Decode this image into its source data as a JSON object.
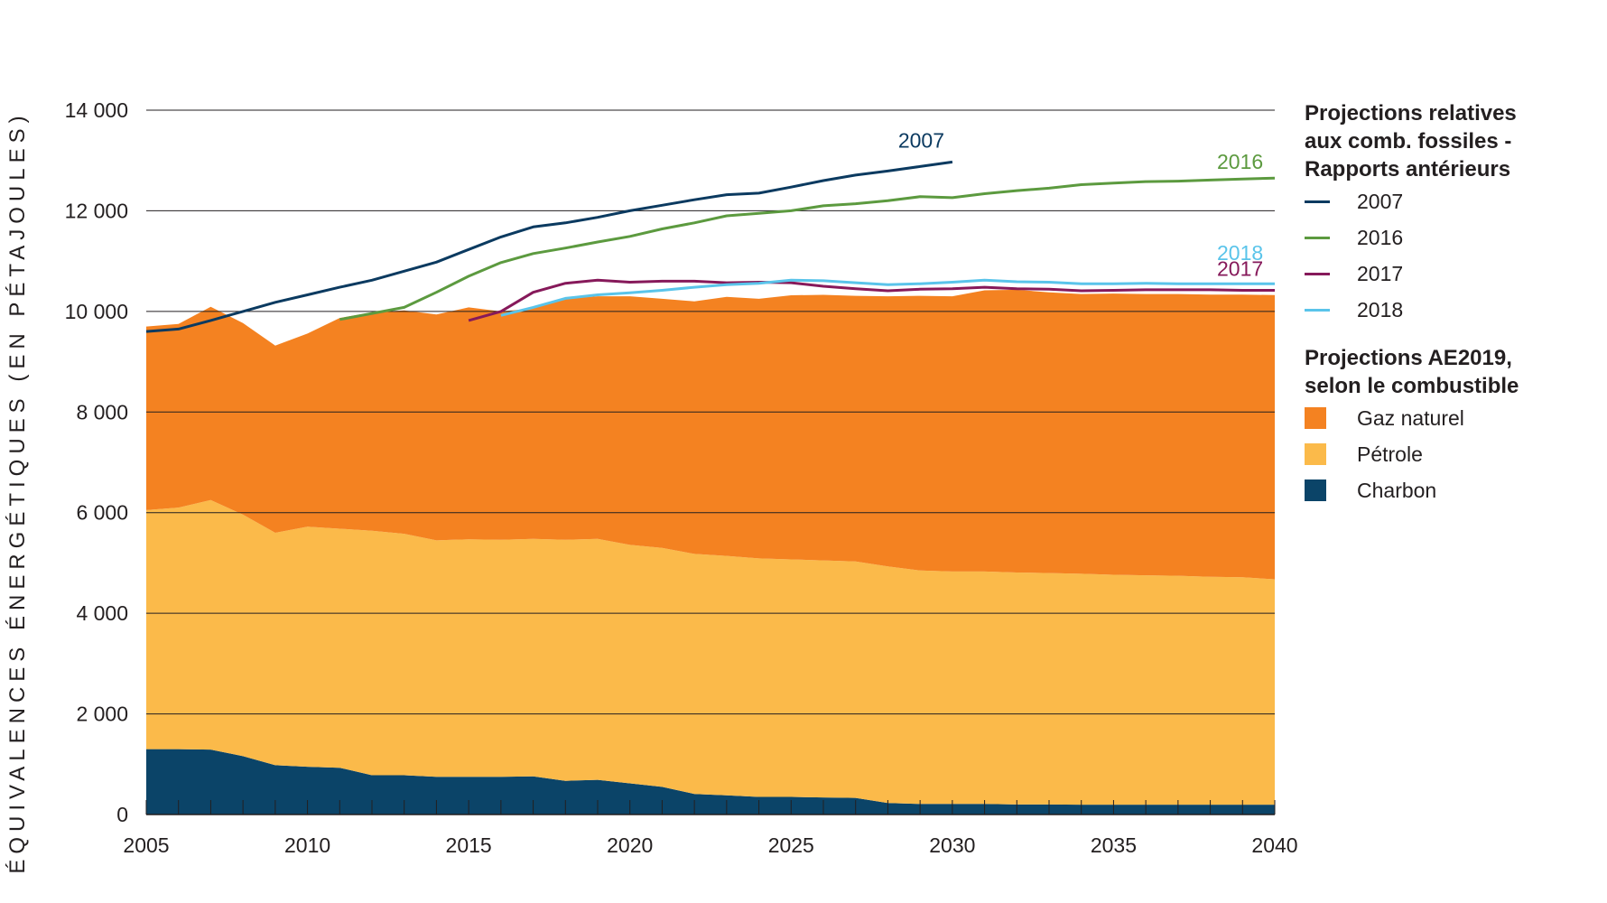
{
  "chart_data": {
    "type": "area",
    "ylabel": "ÉQUIVALENCES ÉNERGÉTIQUES (EN PÉTAJOULES)",
    "xlabel": "",
    "xlim": [
      2005,
      2040
    ],
    "ylim": [
      0,
      14000
    ],
    "x_ticks": [
      2005,
      2010,
      2015,
      2020,
      2025,
      2030,
      2035,
      2040
    ],
    "x_tick_labels": [
      "2005",
      "2010",
      "2015",
      "2020",
      "2025",
      "2030",
      "2035",
      "2040"
    ],
    "y_ticks": [
      0,
      2000,
      4000,
      6000,
      8000,
      10000,
      12000,
      14000
    ],
    "y_tick_labels": [
      "0",
      "2 000",
      "4 000",
      "6 000",
      "8 000",
      "10 000",
      "12 000",
      "14 000"
    ],
    "gridlines": true,
    "x": [
      2005,
      2006,
      2007,
      2008,
      2009,
      2010,
      2011,
      2012,
      2013,
      2014,
      2015,
      2016,
      2017,
      2018,
      2019,
      2020,
      2021,
      2022,
      2023,
      2024,
      2025,
      2026,
      2027,
      2028,
      2029,
      2030,
      2031,
      2032,
      2033,
      2034,
      2035,
      2036,
      2037,
      2038,
      2039,
      2040
    ],
    "stacked_series": [
      {
        "name": "Charbon",
        "color": "#0b4468",
        "values": [
          1300,
          1300,
          1290,
          1160,
          980,
          950,
          930,
          780,
          780,
          750,
          750,
          750,
          760,
          670,
          690,
          620,
          550,
          410,
          380,
          350,
          350,
          340,
          330,
          230,
          210,
          210,
          210,
          200,
          200,
          195,
          195,
          195,
          195,
          195,
          195,
          195
        ]
      },
      {
        "name": "Pétrole",
        "color": "#fbba4a",
        "values": [
          4750,
          4800,
          4960,
          4800,
          4620,
          4770,
          4750,
          4860,
          4800,
          4700,
          4720,
          4710,
          4720,
          4790,
          4790,
          4740,
          4750,
          4770,
          4760,
          4740,
          4720,
          4710,
          4700,
          4700,
          4640,
          4620,
          4620,
          4610,
          4600,
          4590,
          4570,
          4560,
          4550,
          4530,
          4520,
          4480
        ]
      },
      {
        "name": "Gaz naturel",
        "color": "#f48221",
        "values": [
          3650,
          3650,
          3840,
          3810,
          3720,
          3840,
          4190,
          4340,
          4440,
          4490,
          4610,
          4540,
          4580,
          4790,
          4820,
          4940,
          4950,
          5020,
          5150,
          5160,
          5250,
          5280,
          5280,
          5370,
          5460,
          5470,
          5590,
          5620,
          5580,
          5560,
          5590,
          5590,
          5600,
          5610,
          5620,
          5650
        ]
      }
    ],
    "line_series": [
      {
        "name": "2007",
        "color": "#0b3a60",
        "x": [
          2005,
          2006,
          2007,
          2008,
          2009,
          2010,
          2011,
          2012,
          2013,
          2014,
          2015,
          2016,
          2017,
          2018,
          2019,
          2020,
          2021,
          2022,
          2023,
          2024,
          2025,
          2026,
          2027,
          2028,
          2029,
          2030
        ],
        "values": [
          9600,
          9650,
          9820,
          10000,
          10180,
          10330,
          10480,
          10620,
          10800,
          10980,
          11230,
          11480,
          11680,
          11760,
          11870,
          12000,
          12110,
          12220,
          12320,
          12350,
          12470,
          12600,
          12710,
          12790,
          12880,
          12970
        ]
      },
      {
        "name": "2016",
        "color": "#5c9a3f",
        "x": [
          2011,
          2012,
          2013,
          2014,
          2015,
          2016,
          2017,
          2018,
          2019,
          2020,
          2021,
          2022,
          2023,
          2024,
          2025,
          2026,
          2027,
          2028,
          2029,
          2030,
          2031,
          2032,
          2033,
          2034,
          2035,
          2036,
          2037,
          2038,
          2039,
          2040
        ],
        "values": [
          9840,
          9960,
          10080,
          10380,
          10700,
          10970,
          11150,
          11260,
          11380,
          11490,
          11640,
          11760,
          11900,
          11950,
          12000,
          12100,
          12140,
          12200,
          12280,
          12260,
          12340,
          12400,
          12450,
          12520,
          12550,
          12580,
          12590,
          12610,
          12630,
          12650
        ]
      },
      {
        "name": "2017",
        "color": "#86195a",
        "x": [
          2015,
          2016,
          2017,
          2018,
          2019,
          2020,
          2021,
          2022,
          2023,
          2024,
          2025,
          2026,
          2027,
          2028,
          2029,
          2030,
          2031,
          2032,
          2033,
          2034,
          2035,
          2036,
          2037,
          2038,
          2039,
          2040
        ],
        "values": [
          9820,
          10000,
          10380,
          10560,
          10620,
          10580,
          10600,
          10600,
          10570,
          10580,
          10570,
          10500,
          10450,
          10410,
          10440,
          10450,
          10480,
          10450,
          10440,
          10410,
          10420,
          10430,
          10430,
          10430,
          10420,
          10420
        ]
      },
      {
        "name": "2018",
        "color": "#5ac4ea",
        "x": [
          2016,
          2017,
          2018,
          2019,
          2020,
          2021,
          2022,
          2023,
          2024,
          2025,
          2026,
          2027,
          2028,
          2029,
          2030,
          2031,
          2032,
          2033,
          2034,
          2035,
          2036,
          2037,
          2038,
          2039,
          2040
        ],
        "values": [
          9920,
          10080,
          10260,
          10330,
          10370,
          10420,
          10480,
          10530,
          10560,
          10620,
          10610,
          10570,
          10530,
          10550,
          10580,
          10620,
          10590,
          10580,
          10550,
          10550,
          10560,
          10550,
          10550,
          10550,
          10550
        ]
      }
    ],
    "line_end_labels": [
      {
        "text": "2007",
        "color": "#0b3a60"
      },
      {
        "text": "2016",
        "color": "#5c9a3f"
      },
      {
        "text": "2018",
        "color": "#5ac4ea"
      },
      {
        "text": "2017",
        "color": "#86195a"
      }
    ]
  },
  "legend": {
    "lines_title": "Projections relatives aux comb. fossiles - Rapports antérieurs",
    "lines_title_parts": [
      "Projections relatives",
      "aux comb. fossiles -",
      "Rapports antérieurs"
    ],
    "lines": [
      {
        "label": "2007",
        "color": "#0b3a60"
      },
      {
        "label": "2016",
        "color": "#5c9a3f"
      },
      {
        "label": "2017",
        "color": "#86195a"
      },
      {
        "label": "2018",
        "color": "#5ac4ea"
      }
    ],
    "areas_title": "Projections AE2019, selon le combustible",
    "areas_title_parts": [
      "Projections AE2019,",
      "selon le combustible"
    ],
    "areas": [
      {
        "label": "Gaz naturel",
        "color": "#f48221"
      },
      {
        "label": "Pétrole",
        "color": "#fbba4a"
      },
      {
        "label": "Charbon",
        "color": "#0b4468"
      }
    ]
  }
}
